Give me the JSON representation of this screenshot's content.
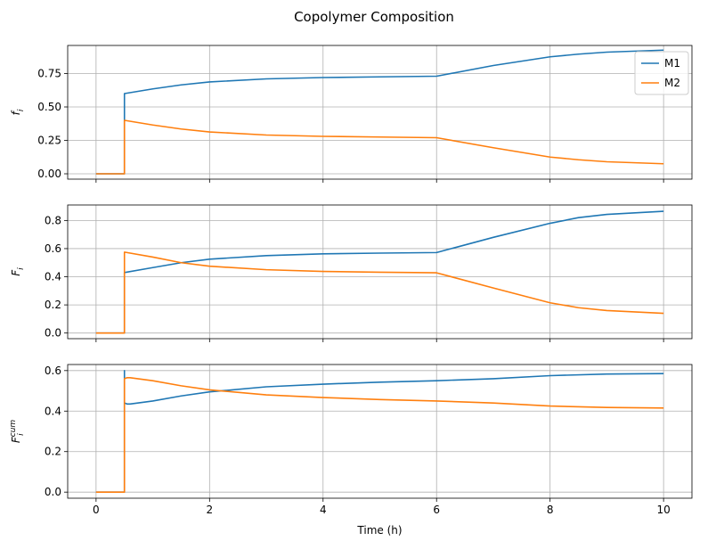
{
  "figure": {
    "title": "Copolymer Composition"
  },
  "chart_data": [
    {
      "type": "line",
      "title": "",
      "xlabel": "",
      "ylabel": "f_i",
      "xlim": [
        -0.5,
        10.5
      ],
      "ylim": [
        -0.04,
        0.96
      ],
      "xticks": [
        0,
        2,
        4,
        6,
        8,
        10
      ],
      "yticks": [
        0.0,
        0.25,
        0.5,
        0.75
      ],
      "ytick_labels": [
        "0.00",
        "0.25",
        "0.50",
        "0.75"
      ],
      "grid": true,
      "legend": {
        "placement": "top-right",
        "entries": [
          "M1",
          "M2"
        ]
      },
      "series": [
        {
          "name": "M1",
          "color": "#1f77b4",
          "x": [
            0,
            0.5,
            0.5,
            0.5,
            1.0,
            1.5,
            2.0,
            3.0,
            4.0,
            5.0,
            6.0,
            7.0,
            8.0,
            8.5,
            9.0,
            10.0
          ],
          "y": [
            0,
            0,
            0.45,
            0.6,
            0.635,
            0.665,
            0.687,
            0.71,
            0.72,
            0.725,
            0.73,
            0.81,
            0.875,
            0.895,
            0.91,
            0.925
          ]
        },
        {
          "name": "M2",
          "color": "#ff7f0e",
          "x": [
            0,
            0.5,
            0.5,
            1.0,
            1.5,
            2.0,
            3.0,
            4.0,
            5.0,
            6.0,
            7.0,
            8.0,
            8.5,
            9.0,
            10.0
          ],
          "y": [
            0,
            0,
            0.4,
            0.365,
            0.335,
            0.313,
            0.29,
            0.28,
            0.275,
            0.27,
            0.195,
            0.125,
            0.105,
            0.09,
            0.075
          ]
        }
      ]
    },
    {
      "type": "line",
      "title": "",
      "xlabel": "",
      "ylabel": "F_i",
      "xlim": [
        -0.5,
        10.5
      ],
      "ylim": [
        -0.04,
        0.91
      ],
      "xticks": [
        0,
        2,
        4,
        6,
        8,
        10
      ],
      "yticks": [
        0.0,
        0.2,
        0.4,
        0.6,
        0.8
      ],
      "ytick_labels": [
        "0.0",
        "0.2",
        "0.4",
        "0.6",
        "0.8"
      ],
      "grid": true,
      "series": [
        {
          "name": "M1",
          "color": "#1f77b4",
          "x": [
            0,
            0.5,
            0.5,
            1.0,
            1.5,
            2.0,
            3.0,
            4.0,
            5.0,
            6.0,
            7.0,
            8.0,
            8.5,
            9.0,
            10.0
          ],
          "y": [
            0,
            0,
            0.43,
            0.465,
            0.5,
            0.525,
            0.55,
            0.563,
            0.568,
            0.572,
            0.68,
            0.78,
            0.82,
            0.843,
            0.865
          ]
        },
        {
          "name": "M2",
          "color": "#ff7f0e",
          "x": [
            0,
            0.5,
            0.5,
            1.0,
            1.5,
            2.0,
            3.0,
            4.0,
            5.0,
            6.0,
            7.0,
            8.0,
            8.5,
            9.0,
            10.0
          ],
          "y": [
            0,
            0,
            0.575,
            0.54,
            0.5,
            0.475,
            0.45,
            0.438,
            0.432,
            0.428,
            0.32,
            0.215,
            0.18,
            0.16,
            0.14
          ]
        }
      ]
    },
    {
      "type": "line",
      "title": "",
      "xlabel": "Time (h)",
      "ylabel": "F_i^cum",
      "xlim": [
        -0.5,
        10.5
      ],
      "ylim": [
        -0.03,
        0.63
      ],
      "xticks": [
        0,
        2,
        4,
        6,
        8,
        10
      ],
      "xtick_labels": [
        "0",
        "2",
        "4",
        "6",
        "8",
        "10"
      ],
      "yticks": [
        0.0,
        0.2,
        0.4,
        0.6
      ],
      "ytick_labels": [
        "0.0",
        "0.2",
        "0.4",
        "0.6"
      ],
      "grid": true,
      "series": [
        {
          "name": "M1",
          "color": "#1f77b4",
          "x": [
            0,
            0.5,
            0.5,
            0.5,
            0.55,
            0.6,
            1.0,
            1.5,
            2.0,
            3.0,
            4.0,
            5.0,
            6.0,
            7.0,
            8.0,
            9.0,
            10.0
          ],
          "y": [
            0,
            0,
            0.6,
            0.44,
            0.435,
            0.435,
            0.45,
            0.475,
            0.495,
            0.52,
            0.533,
            0.543,
            0.55,
            0.56,
            0.575,
            0.583,
            0.585
          ]
        },
        {
          "name": "M2",
          "color": "#ff7f0e",
          "x": [
            0,
            0.5,
            0.5,
            0.55,
            0.6,
            1.0,
            1.5,
            2.0,
            3.0,
            4.0,
            5.0,
            6.0,
            7.0,
            8.0,
            9.0,
            10.0
          ],
          "y": [
            0,
            0,
            0.56,
            0.565,
            0.565,
            0.55,
            0.525,
            0.505,
            0.48,
            0.467,
            0.457,
            0.45,
            0.44,
            0.425,
            0.418,
            0.415
          ]
        }
      ]
    }
  ]
}
